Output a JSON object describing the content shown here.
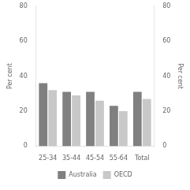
{
  "chart_data": {
    "type": "bar",
    "categories": [
      "25-34",
      "35-44",
      "45-54",
      "55-64",
      "Total"
    ],
    "series": [
      {
        "name": "Australia",
        "color": "#808080",
        "values": [
          36,
          31,
          31,
          23,
          31
        ]
      },
      {
        "name": "OECD",
        "color": "#c8c8c8",
        "values": [
          32,
          29,
          26,
          20,
          27
        ]
      }
    ],
    "ylabel": "Per cent",
    "y2label": "Per cent",
    "ylim": [
      0,
      80
    ],
    "yticks": [
      0,
      20,
      40,
      60,
      80
    ],
    "y2lim": [
      0,
      80
    ],
    "y2ticks": [
      0,
      20,
      40,
      60,
      80
    ],
    "grid": false,
    "legend": "bottom"
  }
}
